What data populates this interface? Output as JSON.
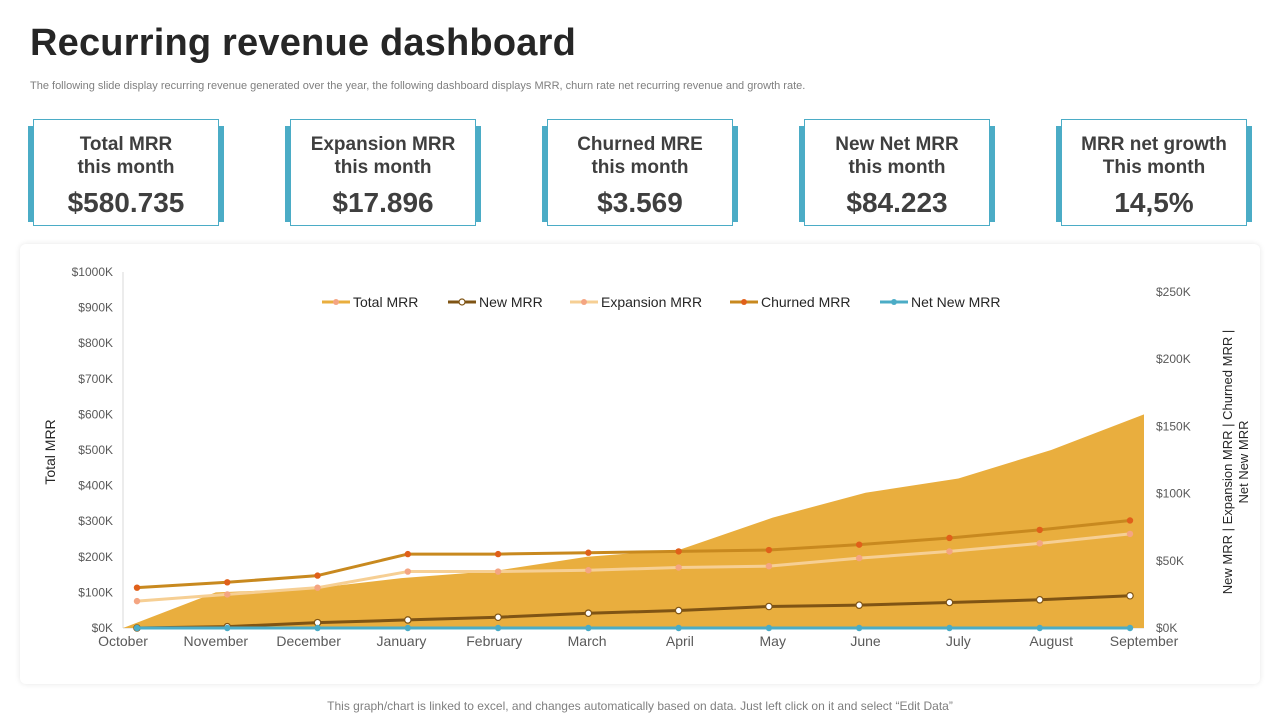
{
  "header": {
    "title": "Recurring revenue dashboard",
    "subtitle": "The following slide display recurring revenue generated over the year, the following dashboard displays MRR, churn rate  net recurring revenue and growth rate."
  },
  "kpis": [
    {
      "label": "Total MRR\nthis month",
      "value": "$580.735"
    },
    {
      "label": "Expansion MRR\nthis month",
      "value": "$17.896"
    },
    {
      "label": "Churned MRE\nthis month",
      "value": "$3.569"
    },
    {
      "label": "New Net MRR\nthis month",
      "value": "$84.223"
    },
    {
      "label": "MRR net growth\nThis month",
      "value": "14,5%"
    }
  ],
  "colors": {
    "accent": "#4bacc6",
    "total_mrr_area": "#e9ae3e",
    "new_mrr": "#7f5414",
    "expansion_mrr": "#f6cf94",
    "churned_mrr": "#c8891f",
    "net_new_mrr": "#4bacc6"
  },
  "chart_data": {
    "type": "area",
    "categories": [
      "October",
      "November",
      "December",
      "January",
      "February",
      "March",
      "April",
      "May",
      "June",
      "July",
      "August",
      "September"
    ],
    "ylabel": "Total MRR",
    "y2label": "New MRR | Expansion MRR | Churned MRR | Net New MRR",
    "yticks": [
      "$0K",
      "$100K",
      "$200K",
      "$300K",
      "$400K",
      "$500K",
      "$600K",
      "$700K",
      "$800K",
      "$900K",
      "$1000K"
    ],
    "y2ticks": [
      "$0K",
      "$50K",
      "$100K",
      "$150K",
      "$200K",
      "$250K"
    ],
    "ylim": [
      0,
      1000
    ],
    "y2lim": [
      0,
      250
    ],
    "legend_position": "top",
    "grid": false,
    "series": [
      {
        "name": "Total MRR",
        "axis": "left",
        "kind": "area",
        "color": "#e9ae3e",
        "values": [
          0,
          100,
          110,
          140,
          160,
          200,
          220,
          310,
          380,
          420,
          500,
          600
        ]
      },
      {
        "name": "New MRR",
        "axis": "right",
        "kind": "line",
        "color": "#7f5414",
        "values": [
          0,
          1,
          4,
          6,
          8,
          11,
          13,
          16,
          17,
          19,
          21,
          24
        ]
      },
      {
        "name": "Expansion MRR",
        "axis": "right",
        "kind": "line",
        "color": "#f6cf94",
        "values": [
          20,
          25,
          30,
          42,
          42,
          43,
          45,
          46,
          52,
          57,
          63,
          70
        ]
      },
      {
        "name": "Churned MRR",
        "axis": "right",
        "kind": "line",
        "color": "#c8891f",
        "values": [
          30,
          34,
          39,
          55,
          55,
          56,
          57,
          58,
          62,
          67,
          73,
          80
        ]
      },
      {
        "name": "Net New MRR",
        "axis": "right",
        "kind": "line",
        "color": "#4bacc6",
        "values": [
          0,
          0,
          0,
          0,
          0,
          0,
          0,
          0,
          0,
          0,
          0,
          0
        ]
      }
    ]
  },
  "footer": {
    "note": "This graph/chart is linked to excel, and changes automatically based on data. Just left click on it and select “Edit Data”"
  }
}
